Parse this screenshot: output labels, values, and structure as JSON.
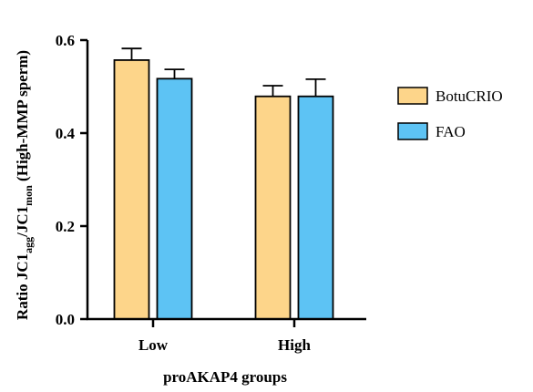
{
  "chart_data": {
    "type": "bar",
    "categories": [
      "Low",
      "High"
    ],
    "series": [
      {
        "name": "BotuCRIO",
        "color": "#FDD58A",
        "values": [
          0.557,
          0.479
        ],
        "errors": [
          0.025,
          0.023
        ]
      },
      {
        "name": "FAO",
        "color": "#5DC3F4",
        "values": [
          0.517,
          0.479
        ],
        "errors": [
          0.02,
          0.037
        ]
      }
    ],
    "xlabel": "proAKAP4 groups",
    "ylabel": {
      "prefix": "Ratio JC1",
      "sub1": "agg",
      "mid": "/JC1",
      "sub2": "mon",
      "suffix": " (High-MMP sperm)"
    },
    "ylim": [
      0,
      0.6
    ],
    "yticks": [
      "0.0",
      "0.2",
      "0.4",
      "0.6"
    ],
    "grid": false,
    "legend_position": "right"
  }
}
